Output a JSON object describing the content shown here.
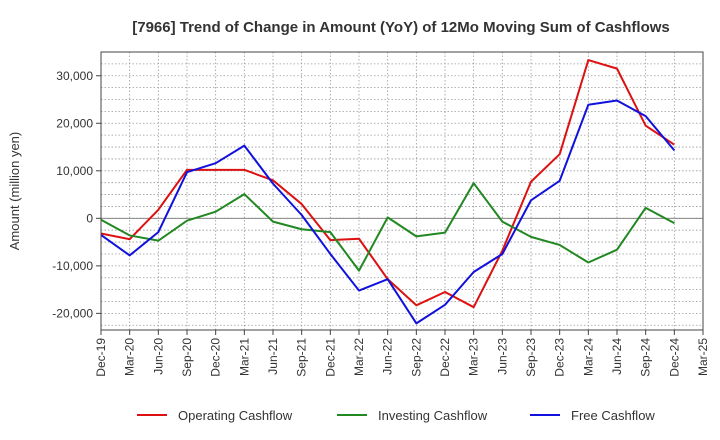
{
  "chart_data": {
    "type": "line",
    "title": "[7966]  Trend of Change in Amount (YoY) of 12Mo Moving Sum of Cashflows",
    "xlabel": "",
    "ylabel": "Amount (million yen)",
    "ylim": [
      -23500,
      35000
    ],
    "yticks": [
      -20000,
      -10000,
      0,
      10000,
      20000,
      30000
    ],
    "ytick_labels": [
      "-20,000",
      "-10,000",
      "0",
      "10,000",
      "20,000",
      "30,000"
    ],
    "categories": [
      "Dec-19",
      "Mar-20",
      "Jun-20",
      "Sep-20",
      "Dec-20",
      "Mar-21",
      "Jun-21",
      "Sep-21",
      "Dec-21",
      "Mar-22",
      "Jun-22",
      "Sep-22",
      "Dec-22",
      "Mar-23",
      "Jun-23",
      "Sep-23",
      "Dec-23",
      "Mar-24",
      "Jun-24",
      "Sep-24",
      "Dec-24",
      "Mar-25"
    ],
    "grid": true,
    "legend_position": "bottom",
    "series": [
      {
        "name": "Operating Cashflow",
        "color": "#dd1111",
        "values": [
          -3200,
          -4400,
          1800,
          10200,
          10200,
          10200,
          8000,
          3000,
          -4600,
          -4300,
          -12800,
          -18300,
          -15500,
          -18700,
          -6800,
          7700,
          13500,
          33300,
          31500,
          19500,
          15500,
          null
        ]
      },
      {
        "name": "Investing Cashflow",
        "color": "#228822",
        "values": [
          -300,
          -3600,
          -4700,
          -500,
          1400,
          5100,
          -700,
          -2300,
          -2900,
          -11000,
          200,
          -3800,
          -3000,
          7400,
          -700,
          -3900,
          -5600,
          -9300,
          -6600,
          2200,
          -1000,
          null
        ]
      },
      {
        "name": "Free Cashflow",
        "color": "#1111dd",
        "values": [
          -3500,
          -7800,
          -2900,
          9700,
          11600,
          15300,
          7300,
          700,
          -7500,
          -15200,
          -12800,
          -22100,
          -18200,
          -11300,
          -7500,
          3800,
          7900,
          23900,
          24800,
          21500,
          14300,
          null
        ]
      }
    ]
  }
}
